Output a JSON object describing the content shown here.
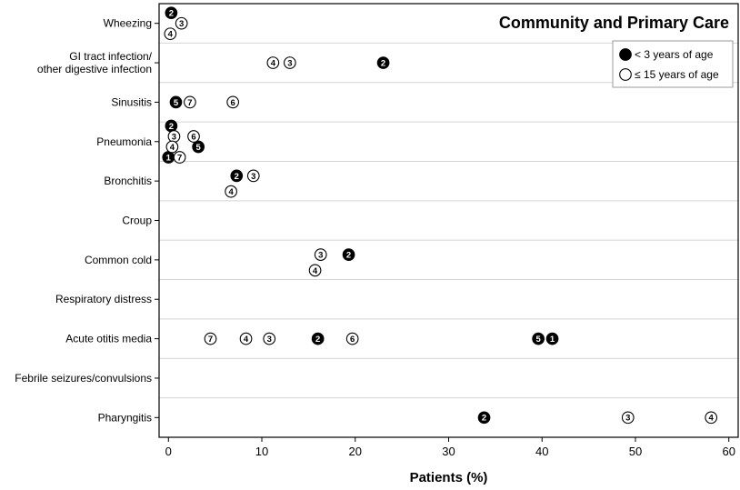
{
  "chart_data": {
    "type": "scatter",
    "title": "Community and Primary Care",
    "xlabel": "Patients (%)",
    "ylabel": "",
    "xlim": [
      -1,
      61
    ],
    "xticks": [
      "0",
      "10",
      "20",
      "30",
      "40",
      "50",
      "60"
    ],
    "categories": [
      "Wheezing",
      "GI tract infection/\nother digestive infection",
      "Sinusitis",
      "Pneumonia",
      "Bronchitis",
      "Croup",
      "Common cold",
      "Respiratory distress",
      "Acute otitis media",
      "Febrile seizures/convulsions",
      "Pharyngitis"
    ],
    "legend": {
      "position": "top-right"
    },
    "grid": {
      "horizontal": true,
      "vertical": false
    },
    "series": [
      {
        "name": "< 3 years of age",
        "style": "filled",
        "points": [
          {
            "category": "Wheezing",
            "x": 0.3,
            "label": "2",
            "offset": -1
          },
          {
            "category": "GI tract infection/\nother digestive infection",
            "x": 23.0,
            "label": "2",
            "offset": 0
          },
          {
            "category": "Sinusitis",
            "x": 0.8,
            "label": "5",
            "offset": 0
          },
          {
            "category": "Pneumonia",
            "x": 0.3,
            "label": "2",
            "offset": -1.5
          },
          {
            "category": "Pneumonia",
            "x": 3.2,
            "label": "5",
            "offset": 0.5
          },
          {
            "category": "Pneumonia",
            "x": 0.0,
            "label": "1",
            "offset": 1.5
          },
          {
            "category": "Bronchitis",
            "x": 7.3,
            "label": "2",
            "offset": -0.5
          },
          {
            "category": "Common cold",
            "x": 19.3,
            "label": "2",
            "offset": -0.5
          },
          {
            "category": "Acute otitis media",
            "x": 16.0,
            "label": "2",
            "offset": 0
          },
          {
            "category": "Acute otitis media",
            "x": 39.6,
            "label": "5",
            "offset": 0
          },
          {
            "category": "Acute otitis media",
            "x": 41.1,
            "label": "1",
            "offset": 0
          },
          {
            "category": "Pharyngitis",
            "x": 33.8,
            "label": "2",
            "offset": 0
          }
        ]
      },
      {
        "name": "≤ 15 years of age",
        "style": "open",
        "points": [
          {
            "category": "Wheezing",
            "x": 1.4,
            "label": "3",
            "offset": 0
          },
          {
            "category": "Wheezing",
            "x": 0.2,
            "label": "4",
            "offset": 1
          },
          {
            "category": "GI tract infection/\nother digestive infection",
            "x": 11.2,
            "label": "4",
            "offset": 0
          },
          {
            "category": "GI tract infection/\nother digestive infection",
            "x": 13.0,
            "label": "3",
            "offset": 0
          },
          {
            "category": "Sinusitis",
            "x": 2.3,
            "label": "7",
            "offset": 0
          },
          {
            "category": "Sinusitis",
            "x": 6.9,
            "label": "6",
            "offset": 0
          },
          {
            "category": "Pneumonia",
            "x": 0.6,
            "label": "3",
            "offset": -0.5
          },
          {
            "category": "Pneumonia",
            "x": 2.7,
            "label": "6",
            "offset": -0.5
          },
          {
            "category": "Pneumonia",
            "x": 0.4,
            "label": "4",
            "offset": 0.5
          },
          {
            "category": "Pneumonia",
            "x": 1.2,
            "label": "7",
            "offset": 1.5
          },
          {
            "category": "Bronchitis",
            "x": 9.1,
            "label": "3",
            "offset": -0.5
          },
          {
            "category": "Bronchitis",
            "x": 6.7,
            "label": "4",
            "offset": 1
          },
          {
            "category": "Common cold",
            "x": 16.3,
            "label": "3",
            "offset": -0.5
          },
          {
            "category": "Common cold",
            "x": 15.7,
            "label": "4",
            "offset": 1
          },
          {
            "category": "Acute otitis media",
            "x": 4.5,
            "label": "7",
            "offset": 0
          },
          {
            "category": "Acute otitis media",
            "x": 8.3,
            "label": "4",
            "offset": 0
          },
          {
            "category": "Acute otitis media",
            "x": 10.8,
            "label": "3",
            "offset": 0
          },
          {
            "category": "Acute otitis media",
            "x": 19.7,
            "label": "6",
            "offset": 0
          },
          {
            "category": "Pharyngitis",
            "x": 49.2,
            "label": "3",
            "offset": 0
          },
          {
            "category": "Pharyngitis",
            "x": 58.1,
            "label": "4",
            "offset": 0
          }
        ]
      }
    ]
  }
}
